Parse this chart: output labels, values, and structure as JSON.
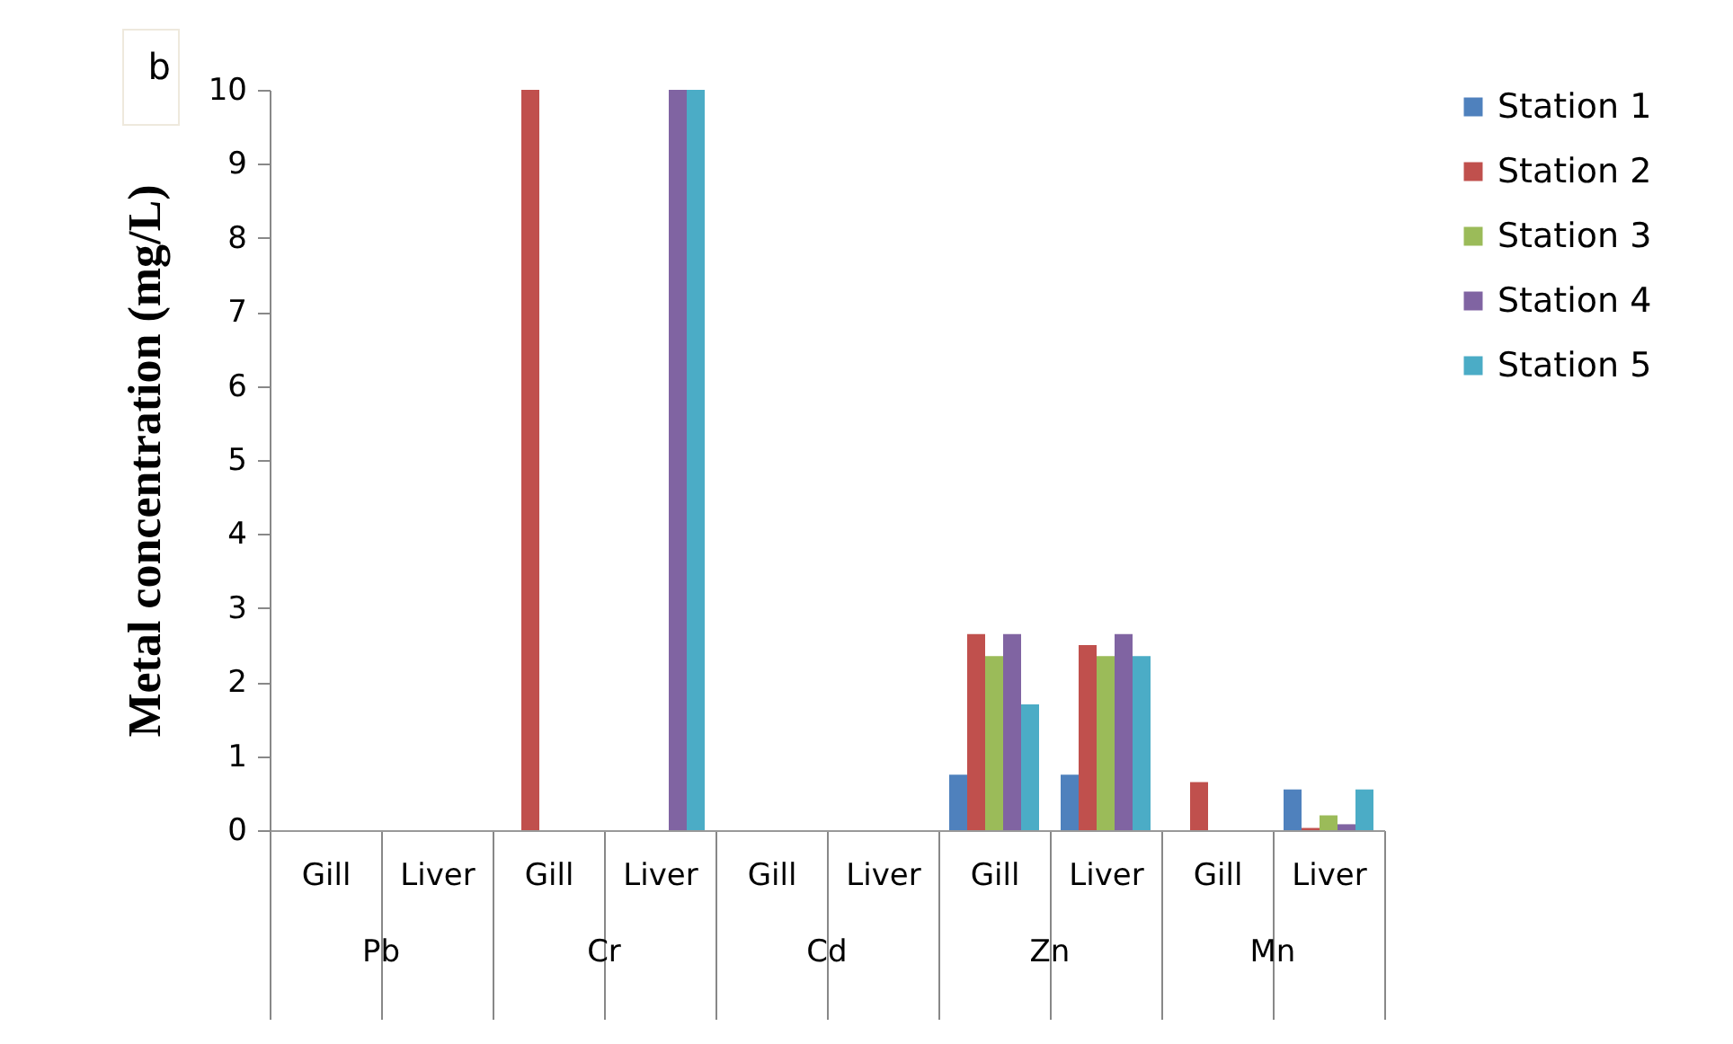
{
  "chart_data": {
    "type": "bar",
    "ylabel": "Metal concentration (mg/L)",
    "categories": [
      "Gill",
      "Liver",
      "Gill",
      "Liver",
      "Gill",
      "Liver",
      "Gill",
      "Liver",
      "Gill",
      "Liver"
    ],
    "annotations": [
      "b",
      "Pb",
      "Cr",
      "Cd",
      "Zn",
      "Mn"
    ],
    "series": [
      {
        "name": "Station 1",
        "color": "#4f81bd",
        "values": [
          0,
          0,
          0,
          0,
          0,
          0,
          0.75,
          0.75,
          0,
          0.55
        ]
      },
      {
        "name": "Station 2",
        "color": "#c0504d",
        "values": [
          0,
          0,
          10,
          0,
          0,
          0,
          2.65,
          2.5,
          0.65,
          0.03
        ]
      },
      {
        "name": "Station 3",
        "color": "#9bbb59",
        "values": [
          0,
          0,
          0,
          0,
          0,
          0,
          2.35,
          2.35,
          0,
          0.2
        ]
      },
      {
        "name": "Station 4",
        "color": "#8064a2",
        "values": [
          0,
          0,
          0,
          10,
          0,
          0,
          2.65,
          2.65,
          0,
          0.08
        ]
      },
      {
        "name": "Station 5",
        "color": "#4bacc6",
        "values": [
          0,
          0,
          0,
          10,
          0,
          0,
          1.7,
          2.35,
          0,
          0.55
        ]
      }
    ],
    "ylim": [
      0,
      10
    ],
    "yticks": [
      0,
      1,
      2,
      3,
      4,
      5,
      6,
      7,
      8,
      9,
      10
    ],
    "grid": false,
    "legend": "right"
  }
}
